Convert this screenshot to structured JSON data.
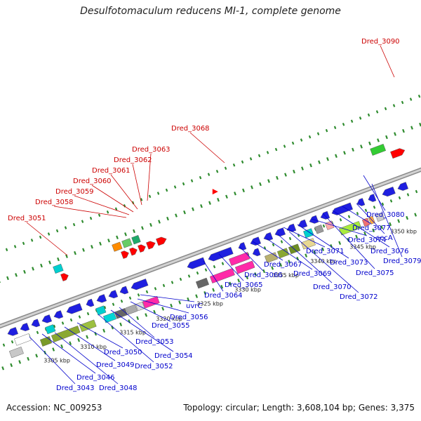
{
  "title": "Desulfotomaculum reducens MI-1, complete genome",
  "footer": {
    "accession": "Accession: NC_009253",
    "summary": "Topology: circular; Length: 3,608,104 bp; Genes: 3,375"
  },
  "colors": {
    "forward_label": "#cc0000",
    "reverse_label": "#0000cc",
    "backbone": "#a0a0a0",
    "dots": "#2e8b2e"
  },
  "ticks": [
    "3305 kbp",
    "3310 kbp",
    "3315 kbp",
    "3320 kbp",
    "3325 kbp",
    "3330 kbp",
    "3335 kbp",
    "3340 kbp",
    "3345 kbp",
    "3350 kbp"
  ],
  "top_labels": [
    "Dred_3090",
    "Dred_3068",
    "Dred_3063",
    "Dred_3062",
    "Dred_3061",
    "Dred_3060",
    "Dred_3059",
    "Dred_3058",
    "Dred_3051"
  ],
  "bottom_labels": [
    "Dred_3043",
    "Dred_3048",
    "Dred_3046",
    "Dred_3049",
    "Dred_3050",
    "Dred_3052",
    "Dred_3054",
    "Dred_3053",
    "Dred_3055",
    "Dred_3056",
    "uvrC",
    "Dred_3064",
    "Dred_3065",
    "Dred_3066",
    "Dred_3067",
    "Dred_3069",
    "Dred_3070",
    "Dred_3072",
    "Dred_3071",
    "Dred_3073",
    "Dred_3074",
    "Dred_3075",
    "Dred_3076",
    "Dred_3077",
    "secA",
    "Dred_3080",
    "Dred_3079"
  ]
}
